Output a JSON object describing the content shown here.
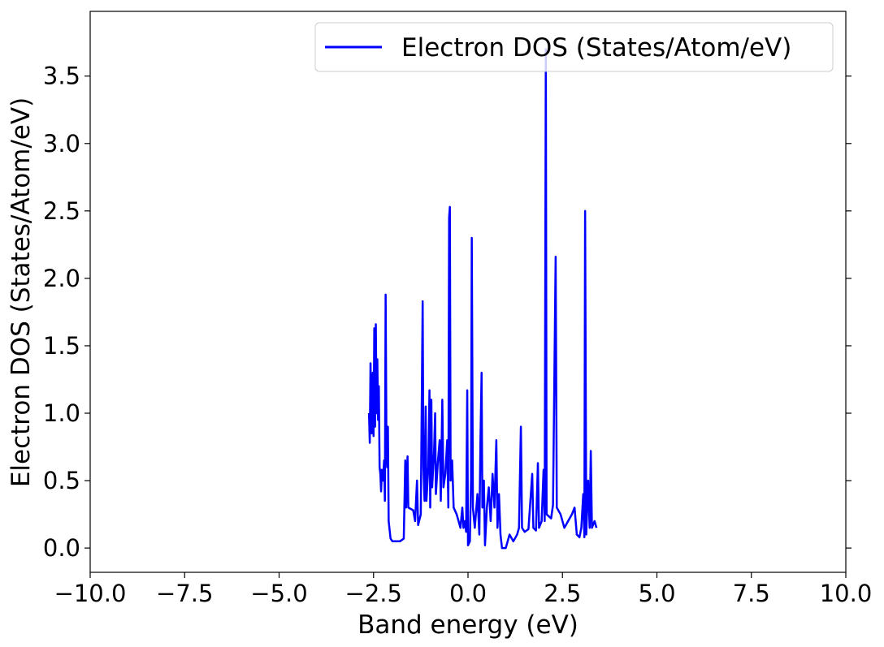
{
  "chart_data": {
    "type": "line",
    "xlabel": "Band energy (eV)",
    "ylabel": "Electron DOS (States/Atom/eV)",
    "xlim": [
      -10,
      10
    ],
    "ylim": [
      -0.18,
      3.98
    ],
    "xticks": [
      {
        "value": -10,
        "label": "−10.0"
      },
      {
        "value": -7.5,
        "label": "−7.5"
      },
      {
        "value": -5,
        "label": "−5.0"
      },
      {
        "value": -2.5,
        "label": "−2.5"
      },
      {
        "value": 0,
        "label": "0.0"
      },
      {
        "value": 2.5,
        "label": "2.5"
      },
      {
        "value": 5,
        "label": "5.0"
      },
      {
        "value": 7.5,
        "label": "7.5"
      },
      {
        "value": 10,
        "label": "10.0"
      }
    ],
    "yticks": [
      {
        "value": 0,
        "label": "0.0"
      },
      {
        "value": 0.5,
        "label": "0.5"
      },
      {
        "value": 1,
        "label": "1.0"
      },
      {
        "value": 1.5,
        "label": "1.5"
      },
      {
        "value": 2,
        "label": "2.0"
      },
      {
        "value": 2.5,
        "label": "2.5"
      },
      {
        "value": 3,
        "label": "3.0"
      },
      {
        "value": 3.5,
        "label": "3.5"
      }
    ],
    "legend": "upper right",
    "x": [
      -2.62,
      -2.6,
      -2.58,
      -2.55,
      -2.52,
      -2.5,
      -2.48,
      -2.46,
      -2.44,
      -2.42,
      -2.4,
      -2.38,
      -2.36,
      -2.34,
      -2.32,
      -2.3,
      -2.28,
      -2.25,
      -2.22,
      -2.2,
      -2.18,
      -2.16,
      -2.14,
      -2.12,
      -2.1,
      -2.05,
      -2.0,
      -1.8,
      -1.7,
      -1.66,
      -1.64,
      -1.6,
      -1.58,
      -1.45,
      -1.4,
      -1.35,
      -1.32,
      -1.25,
      -1.2,
      -1.18,
      -1.15,
      -1.12,
      -1.1,
      -1.05,
      -1.02,
      -1.0,
      -0.97,
      -0.95,
      -0.9,
      -0.87,
      -0.85,
      -0.8,
      -0.75,
      -0.72,
      -0.68,
      -0.65,
      -0.6,
      -0.55,
      -0.52,
      -0.5,
      -0.48,
      -0.46,
      -0.42,
      -0.38,
      -0.3,
      -0.25,
      -0.2,
      -0.15,
      -0.12,
      -0.08,
      -0.05,
      -0.02,
      0.0,
      0.05,
      0.08,
      0.1,
      0.13,
      0.18,
      0.25,
      0.3,
      0.33,
      0.36,
      0.38,
      0.42,
      0.45,
      0.5,
      0.55,
      0.6,
      0.65,
      0.7,
      0.75,
      0.78,
      0.82,
      0.86,
      0.9,
      1.0,
      1.1,
      1.2,
      1.3,
      1.35,
      1.4,
      1.43,
      1.5,
      1.6,
      1.7,
      1.73,
      1.8,
      1.85,
      1.88,
      1.95,
      2.0,
      2.03,
      2.06,
      2.08,
      2.2,
      2.25,
      2.32,
      2.35,
      2.45,
      2.55,
      2.65,
      2.75,
      2.82,
      2.88,
      2.95,
      3.0,
      3.05,
      3.08,
      3.1,
      3.13,
      3.18,
      3.22,
      3.25,
      3.28,
      3.35,
      3.4
    ],
    "series": [
      {
        "name": "Electron DOS (States/Atom/eV)",
        "color": "#0000ff",
        "values": [
          1.0,
          0.78,
          1.37,
          0.85,
          1.3,
          0.83,
          1.63,
          0.9,
          1.66,
          1.0,
          1.4,
          0.95,
          1.2,
          0.6,
          0.55,
          0.42,
          0.58,
          0.5,
          0.65,
          0.35,
          1.88,
          0.85,
          0.6,
          0.9,
          0.2,
          0.07,
          0.05,
          0.05,
          0.07,
          0.65,
          0.3,
          0.68,
          0.3,
          0.28,
          0.2,
          0.5,
          0.17,
          0.25,
          1.83,
          0.6,
          0.35,
          1.05,
          0.35,
          0.6,
          1.17,
          0.3,
          1.1,
          0.45,
          0.7,
          1.0,
          0.4,
          0.63,
          0.8,
          0.35,
          1.1,
          0.45,
          0.55,
          0.8,
          0.3,
          2.45,
          2.53,
          0.5,
          0.65,
          0.3,
          0.25,
          0.2,
          0.15,
          0.3,
          0.15,
          0.2,
          0.12,
          1.17,
          0.02,
          0.05,
          0.5,
          2.3,
          0.3,
          0.15,
          0.4,
          0.1,
          0.8,
          1.3,
          0.3,
          0.5,
          0.02,
          0.3,
          0.45,
          0.2,
          0.55,
          0.3,
          0.8,
          0.15,
          0.4,
          0.1,
          0.0,
          0.0,
          0.1,
          0.05,
          0.1,
          0.15,
          0.9,
          0.15,
          0.12,
          0.14,
          0.55,
          0.15,
          0.13,
          0.63,
          0.15,
          0.2,
          0.58,
          0.2,
          3.7,
          0.25,
          0.22,
          0.32,
          2.16,
          0.3,
          0.25,
          0.15,
          0.2,
          0.25,
          0.3,
          0.1,
          0.08,
          0.15,
          0.4,
          0.08,
          2.5,
          0.1,
          0.5,
          0.15,
          0.72,
          0.15,
          0.2,
          0.15
        ]
      }
    ]
  }
}
